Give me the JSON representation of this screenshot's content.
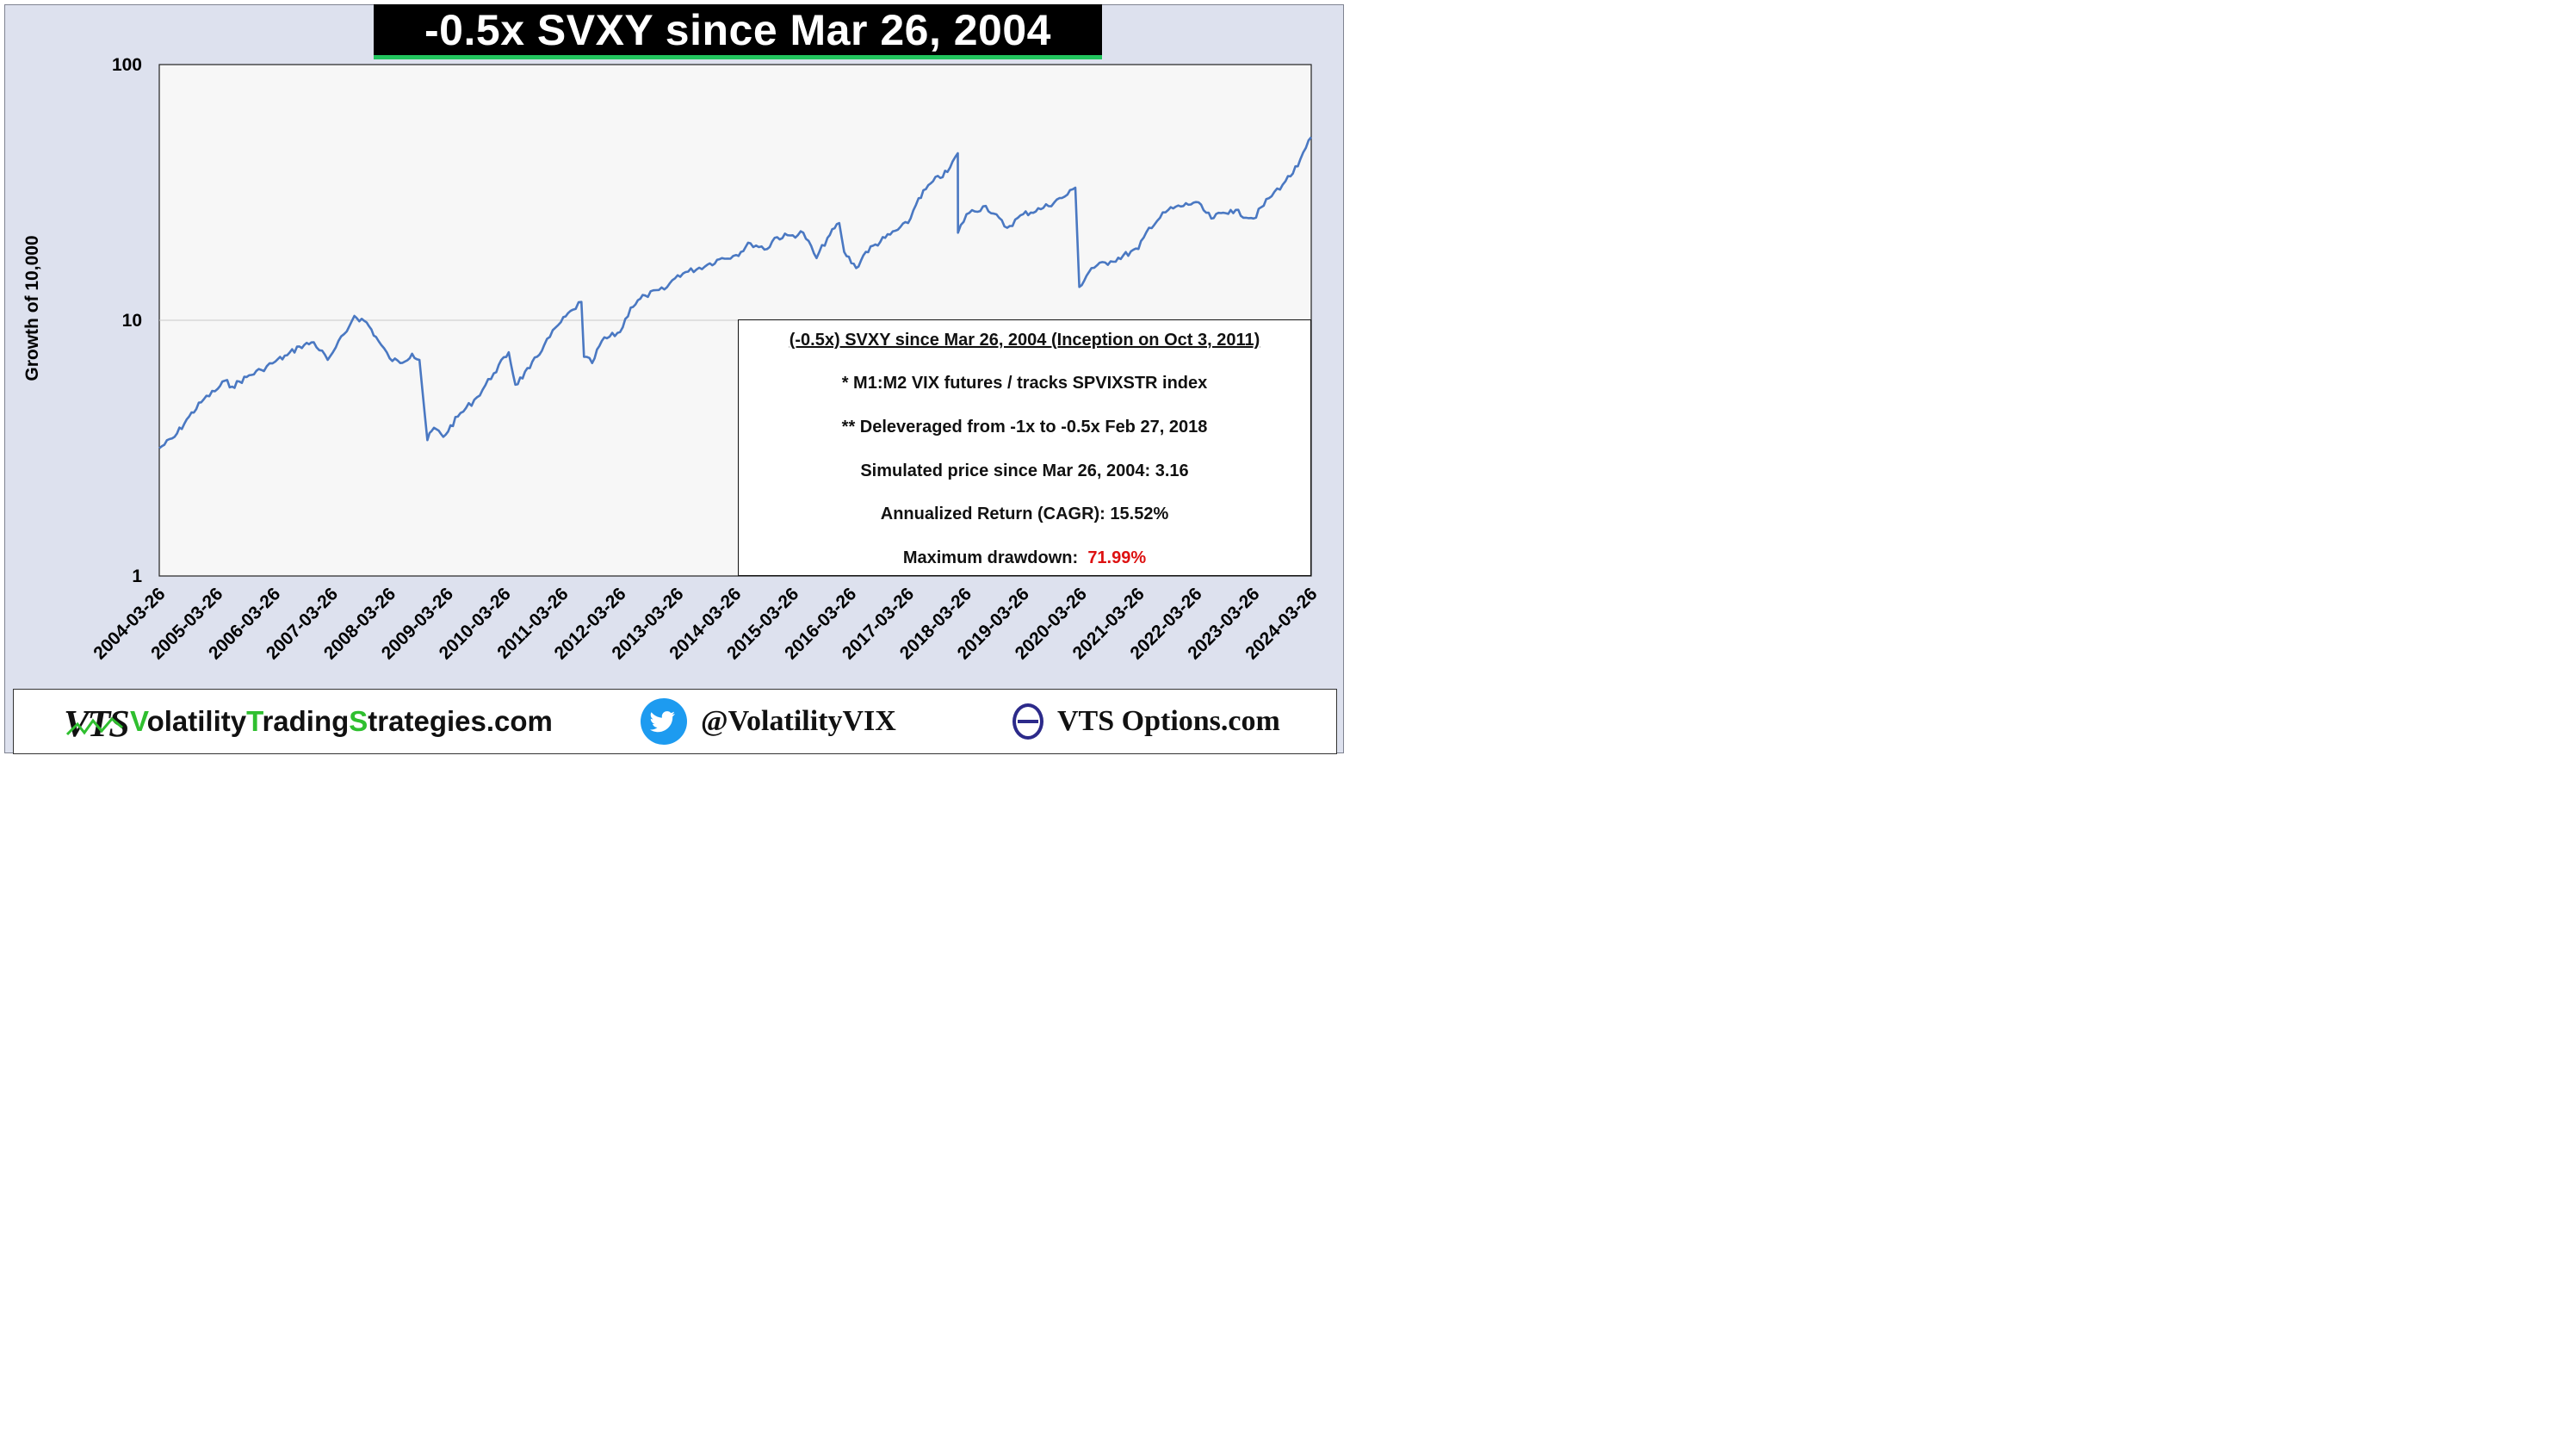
{
  "title": "-0.5x SVXY since Mar 26, 2004",
  "colors": {
    "line": "#4a78c2",
    "title_underline": "#22c55e",
    "drawdown": "#dd1111",
    "brand_green": "#2fbf2f",
    "twitter": "#1d9bf0",
    "vts_options": "#2c2a8a"
  },
  "chart_data": {
    "type": "line",
    "title": "-0.5x SVXY since Mar 26, 2004",
    "xlabel": "",
    "ylabel": "Growth of 10,000",
    "y_scale": "log",
    "ylim": [
      1,
      100
    ],
    "y_ticks": [
      "1",
      "10",
      "100"
    ],
    "grid": "horizontal",
    "x_ticks": [
      "2004-03-26",
      "2005-03-26",
      "2006-03-26",
      "2007-03-26",
      "2008-03-26",
      "2009-03-26",
      "2010-03-26",
      "2011-03-26",
      "2012-03-26",
      "2013-03-26",
      "2014-03-26",
      "2015-03-26",
      "2016-03-26",
      "2017-03-26",
      "2018-03-26",
      "2019-03-26",
      "2020-03-26",
      "2021-03-26",
      "2022-03-26",
      "2023-03-26",
      "2024-03-26"
    ],
    "series": [
      {
        "points": [
          [
            "2004-03-26",
            3.16
          ],
          [
            "2004-07-01",
            3.5
          ],
          [
            "2004-10-01",
            4.2
          ],
          [
            "2005-01-01",
            4.9
          ],
          [
            "2005-04-01",
            5.4
          ],
          [
            "2005-05-15",
            5.8
          ],
          [
            "2005-07-01",
            5.5
          ],
          [
            "2005-10-01",
            6.0
          ],
          [
            "2006-01-01",
            6.4
          ],
          [
            "2006-04-01",
            6.9
          ],
          [
            "2006-06-15",
            7.3
          ],
          [
            "2006-09-01",
            7.9
          ],
          [
            "2006-12-01",
            8.2
          ],
          [
            "2007-02-27",
            7.0
          ],
          [
            "2007-04-01",
            7.5
          ],
          [
            "2007-07-15",
            9.5
          ],
          [
            "2007-08-15",
            10.4
          ],
          [
            "2007-11-01",
            9.8
          ],
          [
            "2008-01-15",
            8.3
          ],
          [
            "2008-03-26",
            7.1
          ],
          [
            "2008-06-01",
            6.8
          ],
          [
            "2008-08-15",
            7.4
          ],
          [
            "2008-10-01",
            7.0
          ],
          [
            "2008-11-20",
            3.4
          ],
          [
            "2009-01-01",
            3.8
          ],
          [
            "2009-03-01",
            3.5
          ],
          [
            "2009-06-01",
            4.2
          ],
          [
            "2009-10-01",
            5.0
          ],
          [
            "2010-01-15",
            6.2
          ],
          [
            "2010-04-20",
            7.5
          ],
          [
            "2010-06-01",
            5.6
          ],
          [
            "2010-09-01",
            6.5
          ],
          [
            "2010-12-01",
            8.0
          ],
          [
            "2011-03-01",
            9.6
          ],
          [
            "2011-06-01",
            11.0
          ],
          [
            "2011-07-25",
            11.8
          ],
          [
            "2011-08-10",
            7.2
          ],
          [
            "2011-10-01",
            6.8
          ],
          [
            "2011-12-01",
            8.3
          ],
          [
            "2012-03-26",
            9.0
          ],
          [
            "2012-06-01",
            11.2
          ],
          [
            "2012-09-01",
            12.5
          ],
          [
            "2013-01-01",
            13.2
          ],
          [
            "2013-03-26",
            15.0
          ],
          [
            "2013-06-01",
            15.5
          ],
          [
            "2013-10-01",
            16.5
          ],
          [
            "2014-01-01",
            17.5
          ],
          [
            "2014-04-01",
            18.0
          ],
          [
            "2014-07-01",
            20.0
          ],
          [
            "2014-10-15",
            19.0
          ],
          [
            "2014-12-01",
            21.0
          ],
          [
            "2015-03-26",
            21.5
          ],
          [
            "2015-06-01",
            22.0
          ],
          [
            "2015-08-24",
            17.5
          ],
          [
            "2015-11-01",
            21.0
          ],
          [
            "2016-01-15",
            24.0
          ],
          [
            "2016-02-15",
            18.5
          ],
          [
            "2016-05-01",
            16.0
          ],
          [
            "2016-07-01",
            18.5
          ],
          [
            "2016-11-01",
            21.0
          ],
          [
            "2017-03-26",
            24.0
          ],
          [
            "2017-06-01",
            30.0
          ],
          [
            "2017-09-01",
            35.0
          ],
          [
            "2017-12-01",
            38.0
          ],
          [
            "2018-02-05",
            45.0
          ],
          [
            "2018-02-06",
            22.0
          ],
          [
            "2018-04-01",
            26.0
          ],
          [
            "2018-08-01",
            28.0
          ],
          [
            "2018-12-15",
            23.0
          ],
          [
            "2019-03-26",
            26.0
          ],
          [
            "2019-08-01",
            27.5
          ],
          [
            "2020-01-01",
            31.0
          ],
          [
            "2020-02-20",
            33.0
          ],
          [
            "2020-03-16",
            13.5
          ],
          [
            "2020-06-01",
            16.0
          ],
          [
            "2020-10-01",
            17.0
          ],
          [
            "2021-03-26",
            19.0
          ],
          [
            "2021-06-01",
            23.0
          ],
          [
            "2021-10-01",
            27.0
          ],
          [
            "2022-03-26",
            29.0
          ],
          [
            "2022-07-01",
            25.0
          ],
          [
            "2022-11-01",
            27.0
          ],
          [
            "2023-03-26",
            25.0
          ],
          [
            "2023-07-01",
            30.0
          ],
          [
            "2023-10-15",
            35.0
          ],
          [
            "2024-01-01",
            40.0
          ],
          [
            "2024-03-26",
            52.0
          ]
        ]
      }
    ],
    "annotations": {
      "heading": "(-0.5x) SVXY since Mar 26, 2004   (Inception on Oct 3, 2011)",
      "line1": "* M1:M2 VIX futures  /  tracks SPVIXSTR index",
      "line2": "** Deleveraged from -1x to -0.5x Feb 27, 2018",
      "line3": "Simulated price since Mar 26, 2004:  3.16",
      "line4": "Annualized Return  (CAGR):  15.52%",
      "line5_label": "Maximum drawdown:",
      "line5_value": "71.99%"
    }
  },
  "footer": {
    "site_logo_text": "VTS",
    "site_name": "VolatilityTradingStrategies.com",
    "site_name_parts": [
      {
        "text": "V",
        "green": true
      },
      {
        "text": "olatility",
        "green": false
      },
      {
        "text": "T",
        "green": true
      },
      {
        "text": "rading",
        "green": false
      },
      {
        "text": "S",
        "green": true
      },
      {
        "text": "trategies.com",
        "green": false
      }
    ],
    "twitter_handle": "@VolatilityVIX",
    "options_site": "VTS Options.com"
  }
}
